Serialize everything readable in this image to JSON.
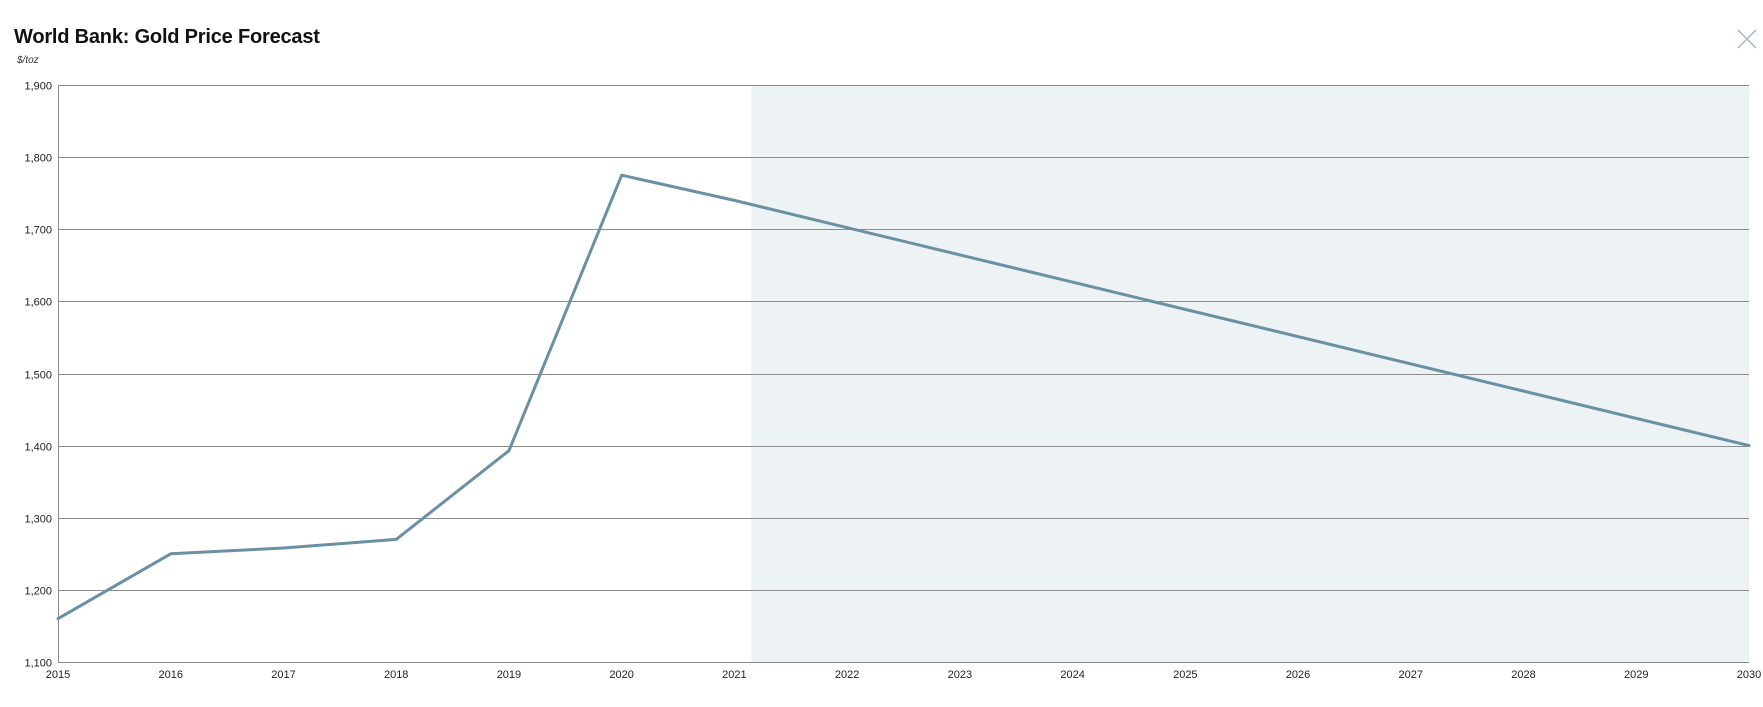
{
  "header": {
    "close_icon": "close-icon"
  },
  "colors": {
    "line": "#6a90a3",
    "forecast_band": "#edf2f4",
    "grid": "#8c8c8c",
    "close": "#aab6c6"
  },
  "chart_data": {
    "type": "line",
    "title": "World Bank: Gold Price Forecast",
    "ylabel": "$/toz",
    "xlabel": "",
    "x_ticks": [
      "2015",
      "2016",
      "2017",
      "2018",
      "2019",
      "2020",
      "2021",
      "2022",
      "2023",
      "2024",
      "2025",
      "2026",
      "2027",
      "2028",
      "2029",
      "2030"
    ],
    "y_ticks": [
      "1,100",
      "1,200",
      "1,300",
      "1,400",
      "1,500",
      "1,600",
      "1,700",
      "1,800",
      "1,900"
    ],
    "xlim": [
      2015,
      2030
    ],
    "ylim": [
      1100,
      1900
    ],
    "grid": true,
    "legend": "none",
    "shaded_region": {
      "from": 2021.15,
      "to": 2030
    },
    "series": [
      {
        "x": [
          2015,
          2016,
          2017,
          2018,
          2019,
          2020,
          2021,
          2030
        ],
        "values": [
          1160,
          1250,
          1258,
          1270,
          1393,
          1775,
          1740,
          1400
        ]
      }
    ]
  }
}
